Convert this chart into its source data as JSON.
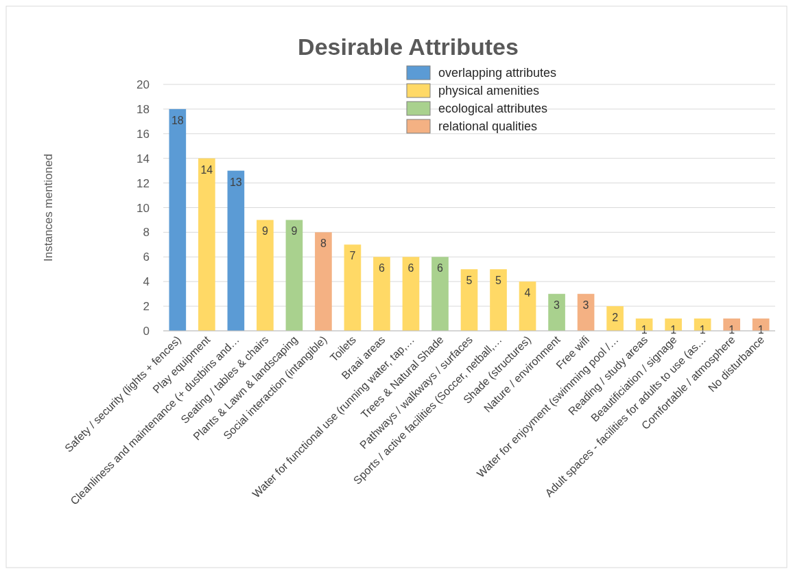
{
  "chart_data": {
    "type": "bar",
    "title": "Desirable Attributes",
    "ylabel": "Instances mentioned",
    "categories": [
      "Safety / security (lights + fences)",
      "Play equipment",
      "Cleanliness and maintenance (+ dustbins and…",
      "Seating / tables & chairs",
      "Plants & Lawn & landscaping",
      "Social interaction (intangible)",
      "Toilets",
      "Braai areas",
      "Water for functional use (running water, tap,…",
      "Trees & Natural Shade",
      "Pathways / walkways / surfaces",
      "Sports / active facilities (Soccer, netball,…",
      "Shade (structures)",
      "Nature / environment",
      "Free wifi",
      "Water for enjoyment (swimming pool /…",
      "Reading / study areas",
      "Beautificiation / signage",
      "Adult spaces - facilities for adults to use (as…",
      "Comfortable / atmosphere",
      "No disturbance"
    ],
    "stacked": true,
    "series": [
      {
        "name": "overlapping attributes",
        "color": "#5b9bd5",
        "values": [
          18,
          null,
          13,
          null,
          null,
          null,
          null,
          null,
          null,
          null,
          null,
          null,
          null,
          null,
          null,
          null,
          null,
          null,
          null,
          null,
          null
        ]
      },
      {
        "name": "physical amenities",
        "color": "#ffd966",
        "values": [
          null,
          14,
          null,
          9,
          null,
          null,
          7,
          6,
          6,
          null,
          5,
          5,
          4,
          null,
          null,
          2,
          1,
          1,
          1,
          null,
          null
        ]
      },
      {
        "name": "ecological attributes",
        "color": "#a9d18e",
        "values": [
          null,
          null,
          null,
          null,
          9,
          null,
          null,
          null,
          null,
          6,
          null,
          null,
          null,
          3,
          null,
          null,
          null,
          null,
          null,
          null,
          null
        ]
      },
      {
        "name": "relational qualities",
        "color": "#f4b183",
        "values": [
          null,
          null,
          null,
          null,
          null,
          8,
          null,
          null,
          null,
          null,
          null,
          null,
          null,
          null,
          3,
          null,
          null,
          null,
          null,
          1,
          1
        ]
      }
    ],
    "ylim": [
      0,
      20
    ],
    "yticks": [
      0,
      2,
      4,
      6,
      8,
      10,
      12,
      14,
      16,
      18,
      20
    ],
    "grid": "y",
    "legend": "top right",
    "data_labels": true
  }
}
